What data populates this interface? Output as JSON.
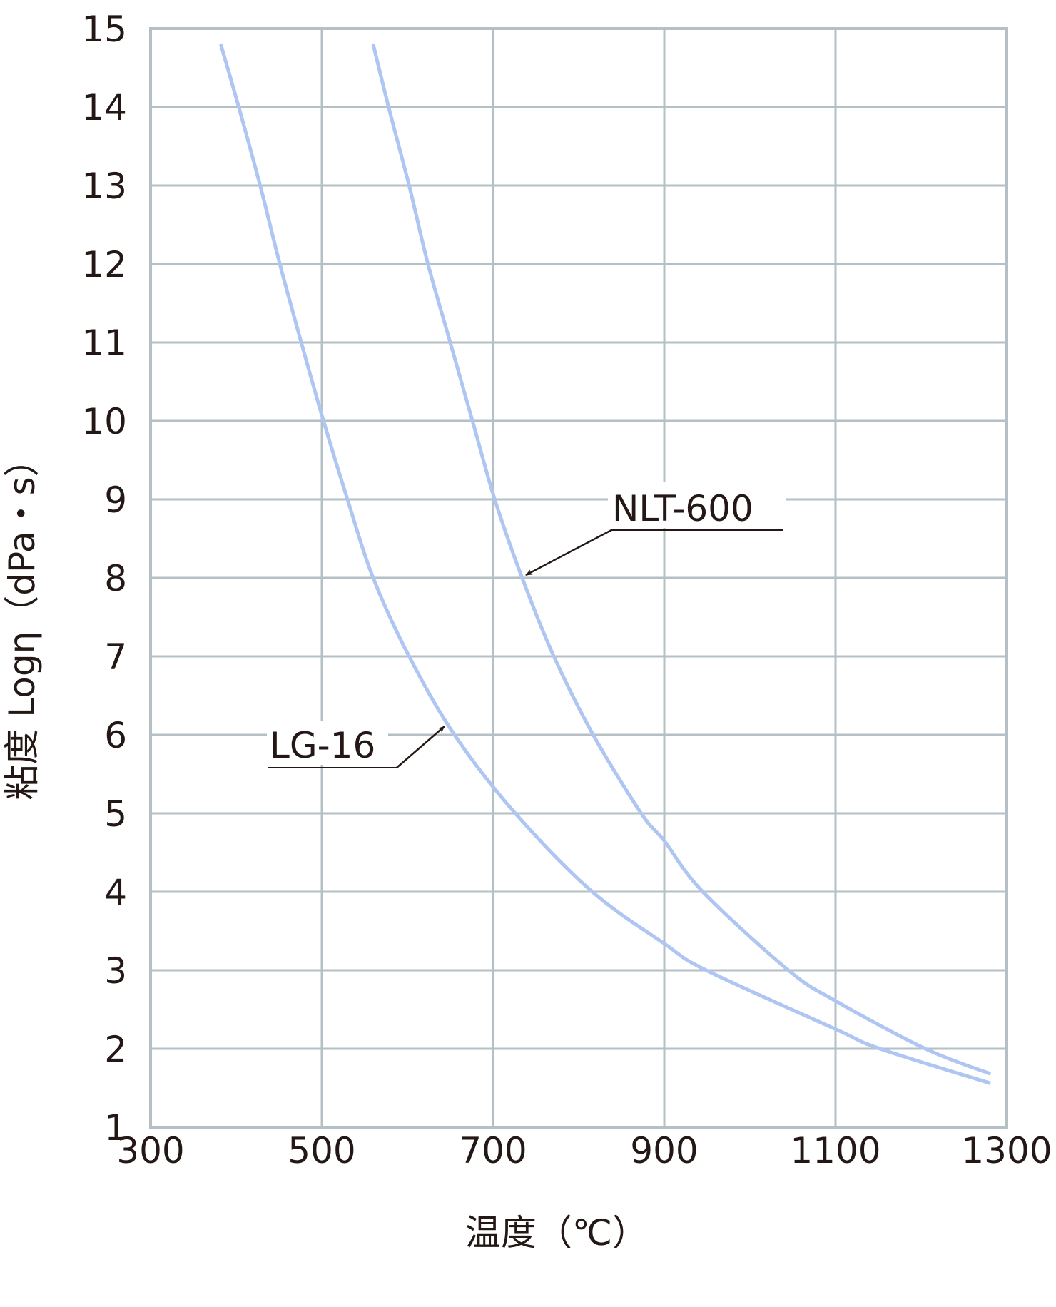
{
  "chart_data": {
    "type": "line",
    "title": "",
    "xlabel": "温度（℃）",
    "ylabel": "粘度 Logη（dPa・s）",
    "xlim": [
      300,
      1300
    ],
    "ylim": [
      1,
      15
    ],
    "x_ticks": [
      "300",
      "500",
      "700",
      "900",
      "1100",
      "1300"
    ],
    "y_ticks": [
      "1",
      "2",
      "3",
      "4",
      "5",
      "6",
      "7",
      "8",
      "9",
      "10",
      "11",
      "12",
      "13",
      "14",
      "15"
    ],
    "grid": true,
    "legend": "inline annotations with arrows",
    "series": [
      {
        "name": "LG-16",
        "color": "#afc6f2",
        "points": [
          [
            382,
            14.8
          ],
          [
            403,
            14.0
          ],
          [
            428,
            13.0
          ],
          [
            451,
            12.0
          ],
          [
            476,
            11.0
          ],
          [
            502,
            10.0
          ],
          [
            530,
            9.0
          ],
          [
            560,
            8.0
          ],
          [
            602,
            7.0
          ],
          [
            655,
            6.0
          ],
          [
            726,
            5.0
          ],
          [
            816,
            4.0
          ],
          [
            900,
            3.34
          ],
          [
            949,
            3.0
          ],
          [
            1100,
            2.25
          ],
          [
            1152,
            2.0
          ],
          [
            1281,
            1.56
          ]
        ]
      },
      {
        "name": "NLT-600",
        "color": "#afc6f2",
        "points": [
          [
            560,
            14.8
          ],
          [
            578,
            14.0
          ],
          [
            602,
            13.0
          ],
          [
            624,
            12.0
          ],
          [
            650,
            11.0
          ],
          [
            676,
            10.0
          ],
          [
            702,
            9.0
          ],
          [
            734,
            8.0
          ],
          [
            771,
            7.0
          ],
          [
            817,
            6.0
          ],
          [
            873,
            5.0
          ],
          [
            900,
            4.65
          ],
          [
            945,
            4.0
          ],
          [
            1045,
            3.0
          ],
          [
            1100,
            2.61
          ],
          [
            1205,
            2.0
          ],
          [
            1281,
            1.68
          ]
        ]
      }
    ],
    "annotations": [
      {
        "text": "NLT-600",
        "points_to": [
          734,
          8.0
        ]
      },
      {
        "text": "LG-16",
        "points_to": [
          650,
          6.1
        ]
      }
    ]
  },
  "colors": {
    "grid": "#b4bfc6",
    "curve": "#afc6f2",
    "text": "#231815"
  }
}
